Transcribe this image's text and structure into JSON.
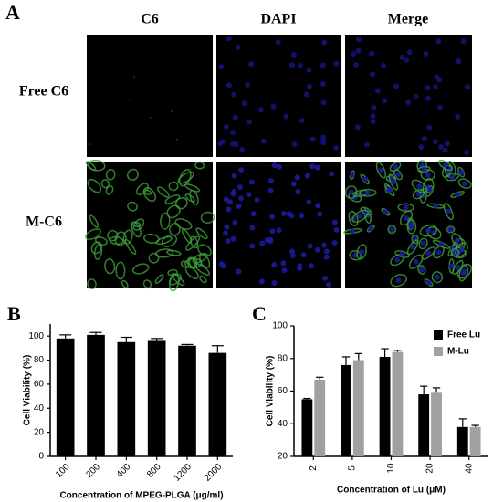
{
  "figure_a": {
    "label": "A",
    "columns": [
      "C6",
      "DAPI",
      "Merge"
    ],
    "rows": [
      "Free C6",
      "M-C6"
    ]
  },
  "chart_data": [
    {
      "label": "B",
      "type": "bar",
      "ylabel": "Cell Viability (%)",
      "xlabel": "Concentration of MPEG-PLGA (μg/ml)",
      "categories": [
        "100",
        "200",
        "400",
        "800",
        "1200",
        "2000"
      ],
      "values": [
        98,
        101,
        95,
        96,
        92,
        86
      ],
      "errors": [
        3,
        2,
        4,
        2,
        1,
        6
      ],
      "color": "#000000",
      "ylim": [
        0,
        110
      ],
      "yticks": [
        0,
        20,
        40,
        60,
        80,
        100
      ]
    },
    {
      "label": "C",
      "type": "bar",
      "ylabel": "Cell Viability (%)",
      "xlabel": "Concentration of Lu (μM)",
      "categories": [
        "2",
        "5",
        "10",
        "20",
        "40"
      ],
      "series": [
        {
          "name": "Free Lu",
          "color": "#000000",
          "values": [
            55,
            76,
            81,
            58,
            38
          ],
          "errors": [
            0.5,
            5,
            5,
            5,
            5
          ]
        },
        {
          "name": "M-Lu",
          "color": "#a0a0a0",
          "values": [
            67,
            79,
            84,
            59,
            38
          ],
          "errors": [
            1.5,
            4,
            1,
            3,
            1
          ]
        }
      ],
      "ylim": [
        20,
        100
      ],
      "yticks": [
        20,
        40,
        60,
        80,
        100
      ],
      "legend": "upper right"
    }
  ]
}
